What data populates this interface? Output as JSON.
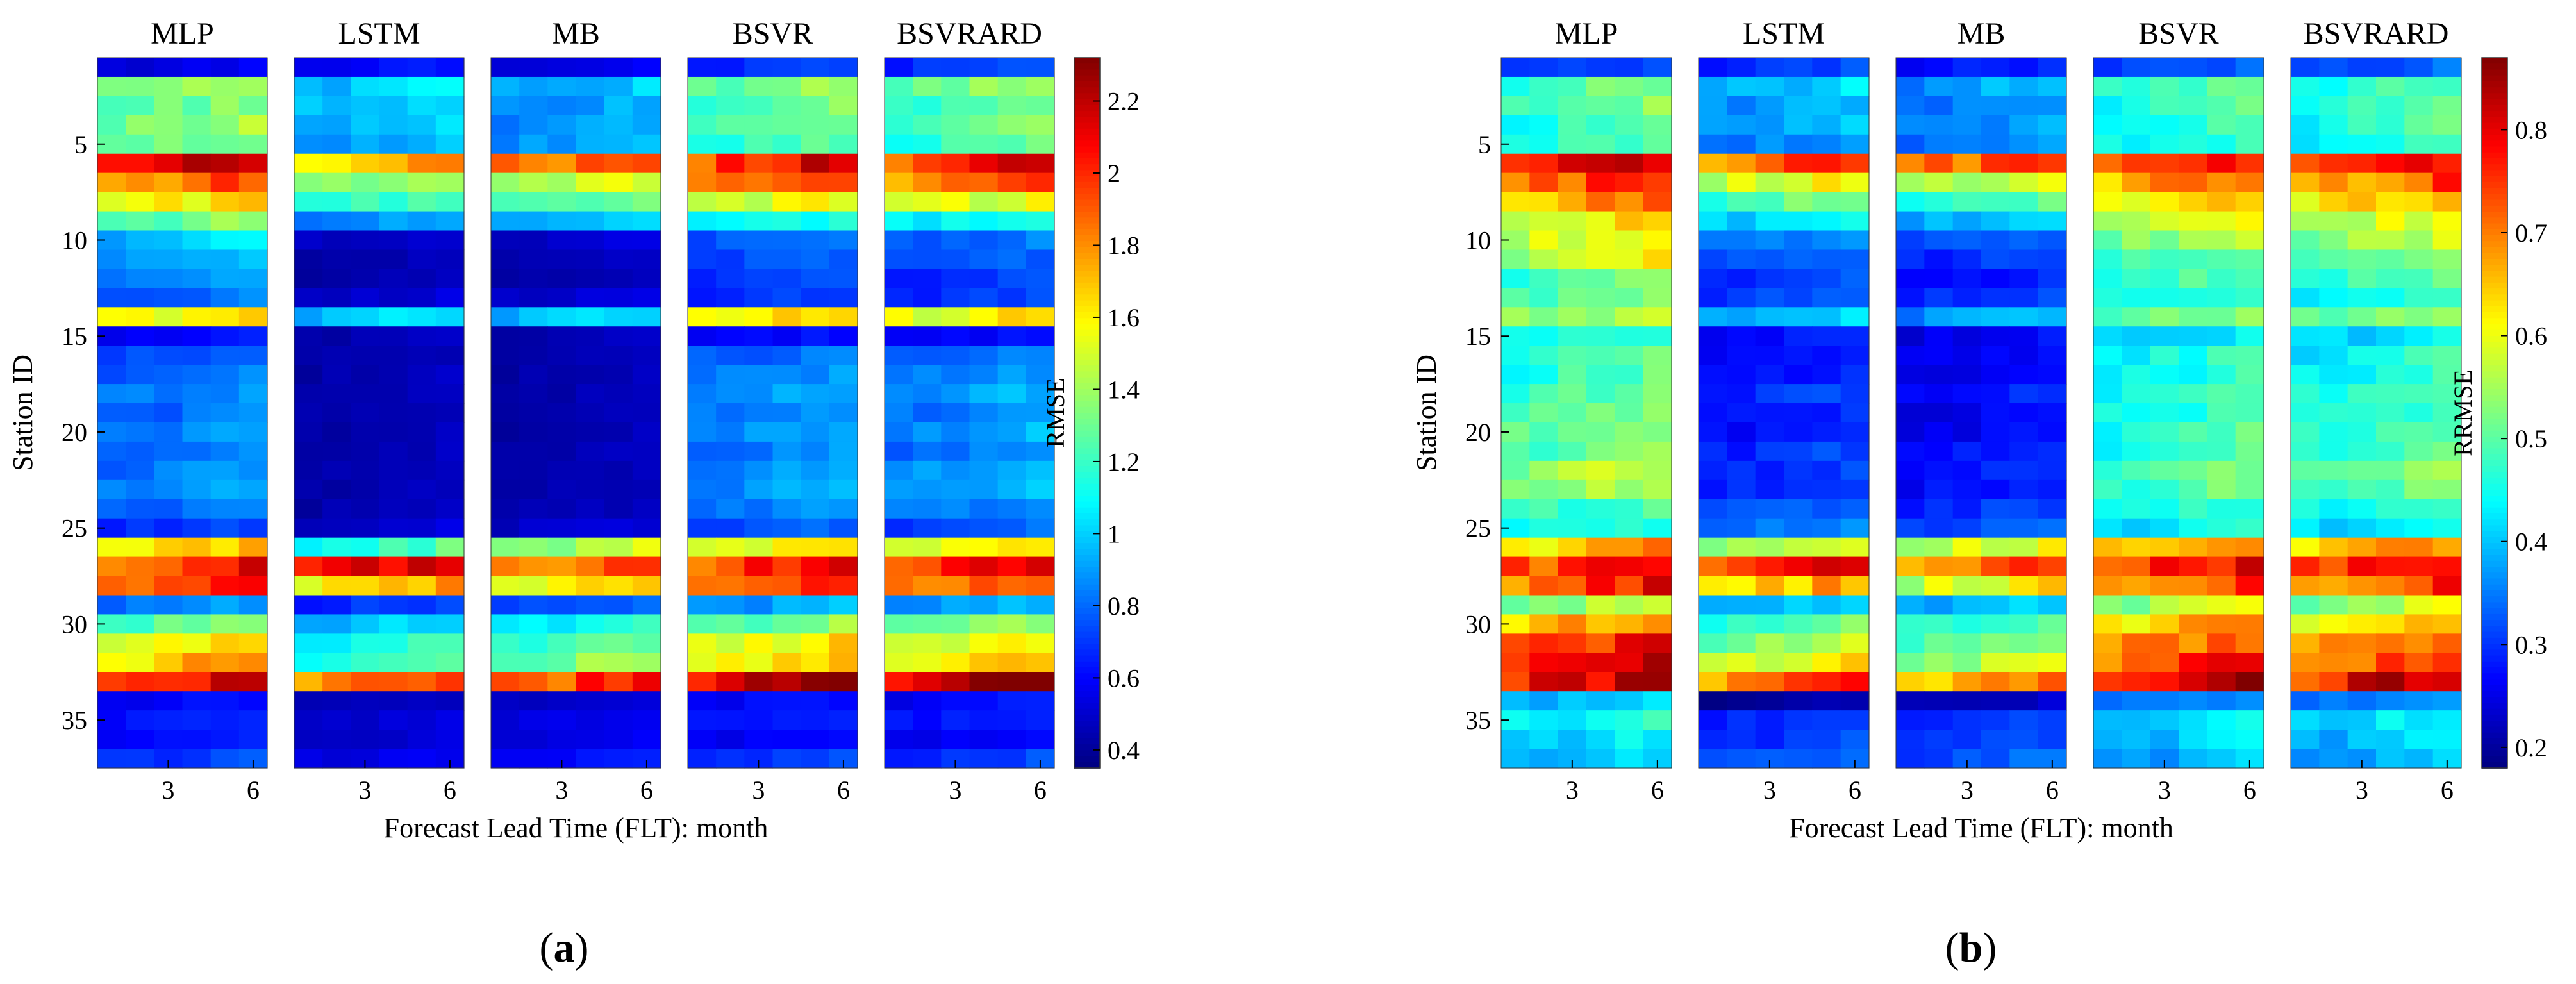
{
  "chart_data": [
    {
      "type": "heatmap",
      "panel_label": "(a)",
      "panel_letter": "a",
      "models": [
        "MLP",
        "LSTM",
        "MB",
        "BSVR",
        "BSVRARD"
      ],
      "xlabel": "Forecast Lead Time (FLT): month",
      "ylabel": "Station ID",
      "colorbar_label": "RMSE",
      "x_ticks": [
        "3",
        "6"
      ],
      "x_tick_values": [
        3,
        6
      ],
      "flt_range": [
        1,
        6
      ],
      "station_range": [
        1,
        37
      ],
      "y_ticks": [
        5,
        10,
        15,
        20,
        25,
        30,
        35
      ],
      "colorbar_ticks": [
        "0.4",
        "0.6",
        "0.8",
        "1",
        "1.2",
        "1.4",
        "1.6",
        "1.8",
        "2",
        "2.2"
      ],
      "colorbar_range": [
        0.35,
        2.32
      ],
      "station_rmse_by_model": {
        "MLP": [
          0.55,
          1.4,
          1.3,
          1.35,
          1.3,
          2.1,
          1.85,
          1.6,
          1.3,
          1.0,
          0.9,
          0.85,
          0.8,
          1.6,
          0.6,
          0.75,
          0.8,
          0.85,
          0.8,
          0.85,
          0.8,
          0.85,
          0.9,
          0.8,
          0.7,
          1.6,
          2.0,
          1.9,
          0.85,
          1.3,
          1.55,
          1.7,
          2.1,
          0.6,
          0.65,
          0.6,
          0.7
        ],
        "LSTM": [
          0.6,
          1.0,
          1.0,
          0.95,
          0.9,
          1.75,
          1.4,
          1.2,
          0.9,
          0.5,
          0.45,
          0.45,
          0.5,
          1.0,
          0.45,
          0.45,
          0.45,
          0.45,
          0.45,
          0.45,
          0.45,
          0.45,
          0.45,
          0.45,
          0.5,
          1.2,
          2.1,
          1.7,
          0.7,
          1.0,
          1.15,
          1.2,
          1.85,
          0.45,
          0.5,
          0.5,
          0.55
        ],
        "MB": [
          0.55,
          0.95,
          0.9,
          0.9,
          0.9,
          1.9,
          1.45,
          1.3,
          1.0,
          0.5,
          0.45,
          0.45,
          0.5,
          1.0,
          0.45,
          0.45,
          0.45,
          0.45,
          0.45,
          0.45,
          0.45,
          0.45,
          0.45,
          0.45,
          0.5,
          1.4,
          1.85,
          1.6,
          0.75,
          1.1,
          1.25,
          1.35,
          1.95,
          0.5,
          0.55,
          0.55,
          0.6
        ],
        "BSVR": [
          0.7,
          1.35,
          1.25,
          1.25,
          1.2,
          2.05,
          1.85,
          1.5,
          1.1,
          0.8,
          0.75,
          0.7,
          0.7,
          1.6,
          0.6,
          0.8,
          0.85,
          0.9,
          0.85,
          0.9,
          0.85,
          0.9,
          0.9,
          0.85,
          0.75,
          1.6,
          2.0,
          1.9,
          0.9,
          1.3,
          1.55,
          1.6,
          2.2,
          0.6,
          0.65,
          0.6,
          0.7
        ],
        "BSVRARD": [
          0.7,
          1.35,
          1.25,
          1.25,
          1.2,
          2.05,
          1.85,
          1.5,
          1.1,
          0.8,
          0.75,
          0.7,
          0.7,
          1.6,
          0.6,
          0.8,
          0.85,
          0.9,
          0.85,
          0.9,
          0.85,
          0.9,
          0.9,
          0.85,
          0.75,
          1.6,
          2.0,
          1.9,
          0.9,
          1.3,
          1.55,
          1.6,
          2.2,
          0.6,
          0.65,
          0.6,
          0.7
        ]
      }
    },
    {
      "type": "heatmap",
      "panel_label": "(b)",
      "panel_letter": "b",
      "models": [
        "MLP",
        "LSTM",
        "MB",
        "BSVR",
        "BSVRARD"
      ],
      "xlabel": "Forecast Lead Time (FLT): month",
      "ylabel": "Station ID",
      "colorbar_label": "RRMSE",
      "x_ticks": [
        "3",
        "6"
      ],
      "x_tick_values": [
        3,
        6
      ],
      "flt_range": [
        1,
        6
      ],
      "station_range": [
        1,
        37
      ],
      "y_ticks": [
        5,
        10,
        15,
        20,
        25,
        30,
        35
      ],
      "colorbar_ticks": [
        "0.2",
        "0.3",
        "0.4",
        "0.5",
        "0.6",
        "0.7",
        "0.8"
      ],
      "colorbar_range": [
        0.18,
        0.87
      ],
      "station_rmse_by_model": {
        "MLP": [
          0.3,
          0.5,
          0.5,
          0.48,
          0.47,
          0.78,
          0.74,
          0.68,
          0.62,
          0.6,
          0.58,
          0.5,
          0.5,
          0.55,
          0.45,
          0.48,
          0.48,
          0.5,
          0.5,
          0.52,
          0.5,
          0.55,
          0.55,
          0.48,
          0.45,
          0.65,
          0.76,
          0.74,
          0.55,
          0.68,
          0.75,
          0.77,
          0.8,
          0.4,
          0.45,
          0.42,
          0.4
        ],
        "LSTM": [
          0.3,
          0.4,
          0.38,
          0.38,
          0.36,
          0.72,
          0.6,
          0.5,
          0.42,
          0.35,
          0.33,
          0.3,
          0.32,
          0.4,
          0.28,
          0.28,
          0.28,
          0.3,
          0.28,
          0.28,
          0.3,
          0.3,
          0.3,
          0.32,
          0.35,
          0.55,
          0.8,
          0.65,
          0.4,
          0.5,
          0.55,
          0.6,
          0.72,
          0.2,
          0.3,
          0.3,
          0.32
        ],
        "MB": [
          0.28,
          0.38,
          0.36,
          0.36,
          0.35,
          0.72,
          0.58,
          0.48,
          0.4,
          0.32,
          0.3,
          0.28,
          0.3,
          0.38,
          0.26,
          0.26,
          0.26,
          0.28,
          0.26,
          0.26,
          0.28,
          0.28,
          0.28,
          0.3,
          0.33,
          0.58,
          0.7,
          0.6,
          0.4,
          0.48,
          0.52,
          0.55,
          0.68,
          0.22,
          0.3,
          0.3,
          0.32
        ],
        "BSVR": [
          0.32,
          0.48,
          0.48,
          0.47,
          0.46,
          0.75,
          0.7,
          0.64,
          0.58,
          0.55,
          0.5,
          0.48,
          0.46,
          0.52,
          0.42,
          0.45,
          0.45,
          0.47,
          0.46,
          0.48,
          0.47,
          0.5,
          0.5,
          0.46,
          0.43,
          0.66,
          0.76,
          0.72,
          0.55,
          0.65,
          0.7,
          0.74,
          0.8,
          0.35,
          0.42,
          0.4,
          0.38
        ],
        "BSVRARD": [
          0.32,
          0.48,
          0.48,
          0.47,
          0.46,
          0.75,
          0.7,
          0.64,
          0.58,
          0.55,
          0.5,
          0.48,
          0.46,
          0.52,
          0.42,
          0.45,
          0.45,
          0.47,
          0.46,
          0.48,
          0.47,
          0.5,
          0.5,
          0.46,
          0.43,
          0.66,
          0.76,
          0.72,
          0.55,
          0.65,
          0.7,
          0.74,
          0.8,
          0.35,
          0.42,
          0.4,
          0.38
        ]
      }
    }
  ]
}
